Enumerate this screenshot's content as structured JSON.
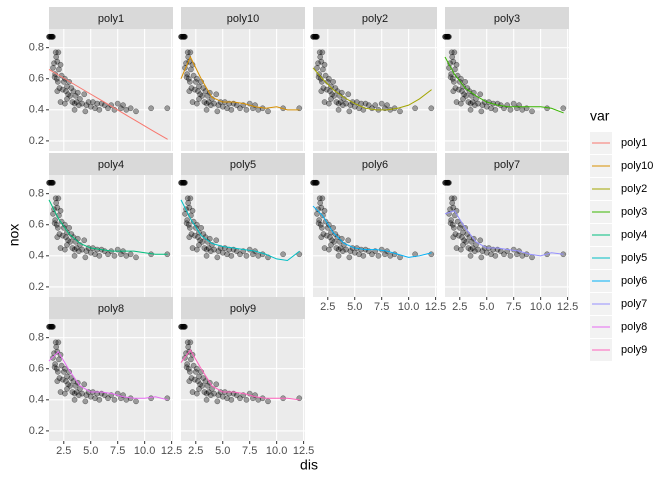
{
  "chart_data": {
    "type": "facet-scatter-line",
    "xlabel": "dis",
    "ylabel": "nox",
    "legend_title": "var",
    "xlim": [
      1.13,
      12.63
    ],
    "xticks": [
      2.5,
      {
        "value": 5,
        "label": "5.0"
      },
      7.5,
      {
        "value": 10,
        "label": "10.0"
      },
      12.5
    ],
    "ylim": [
      0.135,
      0.92
    ],
    "yticks": [
      0.2,
      0.4,
      0.6,
      0.8
    ],
    "grid": true,
    "points": {
      "x": [
        1.13,
        1.17,
        1.2,
        1.3,
        1.32,
        1.35,
        1.4,
        1.42,
        1.45,
        1.5,
        1.5,
        1.6,
        1.65,
        1.7,
        1.75,
        1.8,
        1.85,
        1.9,
        1.95,
        2.0,
        2.05,
        2.1,
        2.2,
        2.3,
        2.4,
        2.5,
        2.6,
        2.7,
        2.8,
        2.9,
        3.0,
        3.1,
        3.2,
        3.3,
        3.4,
        3.5,
        3.6,
        3.7,
        3.8,
        3.9,
        4.0,
        4.2,
        4.4,
        4.6,
        4.8,
        5.0,
        5.2,
        5.4,
        5.6,
        5.8,
        6.0,
        6.3,
        6.6,
        6.9,
        7.2,
        7.5,
        7.8,
        8.0,
        8.3,
        8.7,
        9.2,
        10.6,
        12.1,
        2.2,
        2.8,
        3.5,
        1.9,
        2.6,
        4.5
      ],
      "y": [
        0.87,
        0.87,
        0.87,
        0.87,
        0.87,
        0.87,
        0.87,
        0.87,
        0.87,
        0.87,
        0.67,
        0.7,
        0.61,
        0.63,
        0.77,
        0.74,
        0.6,
        0.71,
        0.58,
        0.77,
        0.66,
        0.54,
        0.69,
        0.62,
        0.53,
        0.58,
        0.6,
        0.52,
        0.55,
        0.5,
        0.58,
        0.49,
        0.54,
        0.45,
        0.52,
        0.44,
        0.49,
        0.45,
        0.51,
        0.43,
        0.47,
        0.44,
        0.5,
        0.43,
        0.45,
        0.42,
        0.45,
        0.41,
        0.44,
        0.4,
        0.44,
        0.43,
        0.41,
        0.43,
        0.4,
        0.44,
        0.41,
        0.43,
        0.4,
        0.41,
        0.39,
        0.41,
        0.41,
        0.45,
        0.47,
        0.4,
        0.52,
        0.44,
        0.39
      ]
    },
    "fit_x": [
      1.13,
      2,
      3,
      4,
      5,
      6,
      7,
      8,
      9,
      10,
      11,
      12.13
    ],
    "series": [
      {
        "name": "poly1",
        "color": "#F8766D",
        "values": [
          0.66,
          0.624,
          0.583,
          0.542,
          0.501,
          0.46,
          0.419,
          0.378,
          0.337,
          0.296,
          0.255,
          0.21
        ]
      },
      {
        "name": "poly10",
        "color": "#D89000",
        "values": [
          0.6,
          0.74,
          0.6,
          0.48,
          0.45,
          0.45,
          0.44,
          0.42,
          0.41,
          0.42,
          0.4,
          0.4
        ]
      },
      {
        "name": "poly2",
        "color": "#A3A500",
        "values": [
          0.67,
          0.6,
          0.53,
          0.48,
          0.44,
          0.41,
          0.4,
          0.4,
          0.41,
          0.43,
          0.47,
          0.53
        ]
      },
      {
        "name": "poly3",
        "color": "#39B600",
        "values": [
          0.74,
          0.63,
          0.54,
          0.49,
          0.45,
          0.43,
          0.42,
          0.42,
          0.42,
          0.42,
          0.41,
          0.38
        ]
      },
      {
        "name": "poly4",
        "color": "#00BF7D",
        "values": [
          0.76,
          0.64,
          0.54,
          0.48,
          0.45,
          0.44,
          0.43,
          0.43,
          0.43,
          0.42,
          0.41,
          0.41
        ]
      },
      {
        "name": "poly5",
        "color": "#00BFC4",
        "values": [
          0.76,
          0.64,
          0.53,
          0.48,
          0.46,
          0.45,
          0.44,
          0.43,
          0.41,
          0.38,
          0.37,
          0.43
        ]
      },
      {
        "name": "poly6",
        "color": "#00B0F6",
        "values": [
          0.72,
          0.66,
          0.55,
          0.48,
          0.45,
          0.44,
          0.44,
          0.43,
          0.41,
          0.39,
          0.4,
          0.42
        ]
      },
      {
        "name": "poly7",
        "color": "#9590FF",
        "values": [
          0.67,
          0.69,
          0.58,
          0.49,
          0.45,
          0.45,
          0.44,
          0.43,
          0.41,
          0.4,
          0.42,
          0.41
        ]
      },
      {
        "name": "poly8",
        "color": "#E76BF3",
        "values": [
          0.65,
          0.71,
          0.59,
          0.49,
          0.45,
          0.45,
          0.44,
          0.42,
          0.41,
          0.41,
          0.42,
          0.4
        ]
      },
      {
        "name": "poly9",
        "color": "#FF62BC",
        "values": [
          0.64,
          0.72,
          0.6,
          0.49,
          0.45,
          0.45,
          0.44,
          0.42,
          0.41,
          0.41,
          0.41,
          0.4
        ]
      }
    ]
  }
}
